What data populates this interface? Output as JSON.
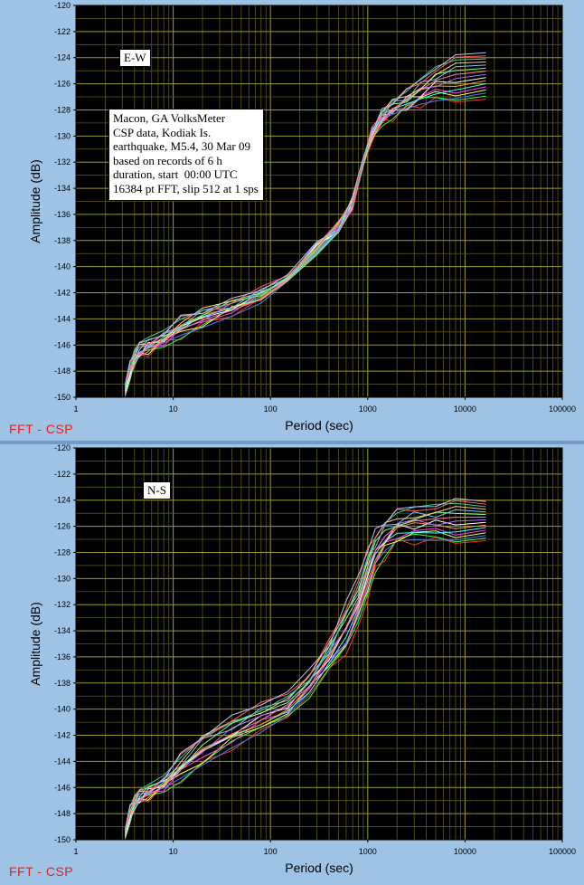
{
  "chart_data": [
    {
      "type": "line",
      "panel_label": "FFT - CSP",
      "xlabel": "Period (sec)",
      "ylabel": "Amplitude (dB)",
      "xscale": "log",
      "xlim": [
        1,
        100000
      ],
      "ylim": [
        -150,
        -120
      ],
      "xticks": [
        "1",
        "10",
        "100",
        "1000",
        "10000",
        "100000"
      ],
      "yticks": [
        "-120",
        "-122",
        "-124",
        "-126",
        "-128",
        "-130",
        "-132",
        "-134",
        "-136",
        "-138",
        "-140",
        "-142",
        "-144",
        "-146",
        "-148",
        "-150"
      ],
      "grid": true,
      "annotations": [
        "E-W",
        "Macon, GA VolksMeter\nCSP data, Kodiak Is.\nearthquake, M5.4, 30 Mar 09\nbased on records of 6 h\nduration, start  00:00 UTC\n16384 pt FFT, slip 512 at 1 sps"
      ],
      "series_count": 16,
      "x": [
        3.2,
        3.6,
        4.0,
        4.5,
        5.5,
        8,
        12,
        20,
        40,
        80,
        150,
        300,
        500,
        700,
        900,
        1100,
        1400,
        1800,
        2500,
        3500,
        5000,
        8000,
        16384
      ],
      "y_band_low": [
        -150,
        -148.5,
        -147.5,
        -147,
        -146.6,
        -146.0,
        -145.3,
        -144.6,
        -143.6,
        -142.6,
        -141.0,
        -138.8,
        -137.3,
        -135.5,
        -132.5,
        -130.2,
        -129.0,
        -128.6,
        -128.0,
        -127.6,
        -127.4,
        -127.3,
        -127.3
      ],
      "y_band_high": [
        -149.0,
        -147.5,
        -146.5,
        -146.0,
        -145.6,
        -145.0,
        -144.0,
        -143.2,
        -142.6,
        -141.8,
        -140.4,
        -138.4,
        -136.8,
        -134.8,
        -131.6,
        -129.6,
        -128.2,
        -127.2,
        -126.6,
        -125.6,
        -124.6,
        -124.0,
        -123.5
      ]
    },
    {
      "type": "line",
      "panel_label": "FFT - CSP",
      "xlabel": "Period (sec)",
      "ylabel": "Amplitude (dB)",
      "xscale": "log",
      "xlim": [
        1,
        100000
      ],
      "ylim": [
        -150,
        -120
      ],
      "xticks": [
        "1",
        "10",
        "100",
        "1000",
        "10000",
        "100000"
      ],
      "yticks": [
        "-120",
        "-122",
        "-124",
        "-126",
        "-128",
        "-130",
        "-132",
        "-134",
        "-136",
        "-138",
        "-140",
        "-142",
        "-144",
        "-146",
        "-148",
        "-150"
      ],
      "grid": true,
      "annotations": [
        "N-S"
      ],
      "series_count": 16,
      "x": [
        3.2,
        3.6,
        4.0,
        4.5,
        5.5,
        8,
        12,
        20,
        40,
        80,
        150,
        250,
        400,
        600,
        800,
        1000,
        1200,
        1500,
        2000,
        3000,
        5000,
        8000,
        16384
      ],
      "y_band_low": [
        -150,
        -148.5,
        -147.6,
        -147.2,
        -146.8,
        -146.2,
        -145.4,
        -144.4,
        -143.0,
        -141.8,
        -140.6,
        -139.0,
        -137.0,
        -135.8,
        -134.0,
        -131.5,
        -129.5,
        -128.4,
        -127.4,
        -127.2,
        -127.2,
        -127.2,
        -127.2
      ],
      "y_band_high": [
        -149.2,
        -147.6,
        -146.8,
        -146.4,
        -146.0,
        -145.2,
        -143.6,
        -141.8,
        -140.6,
        -139.6,
        -138.4,
        -137.2,
        -134.8,
        -131.8,
        -129.6,
        -127.6,
        -126.4,
        -125.4,
        -124.8,
        -124.4,
        -124.2,
        -124.1,
        -124.0
      ]
    }
  ]
}
